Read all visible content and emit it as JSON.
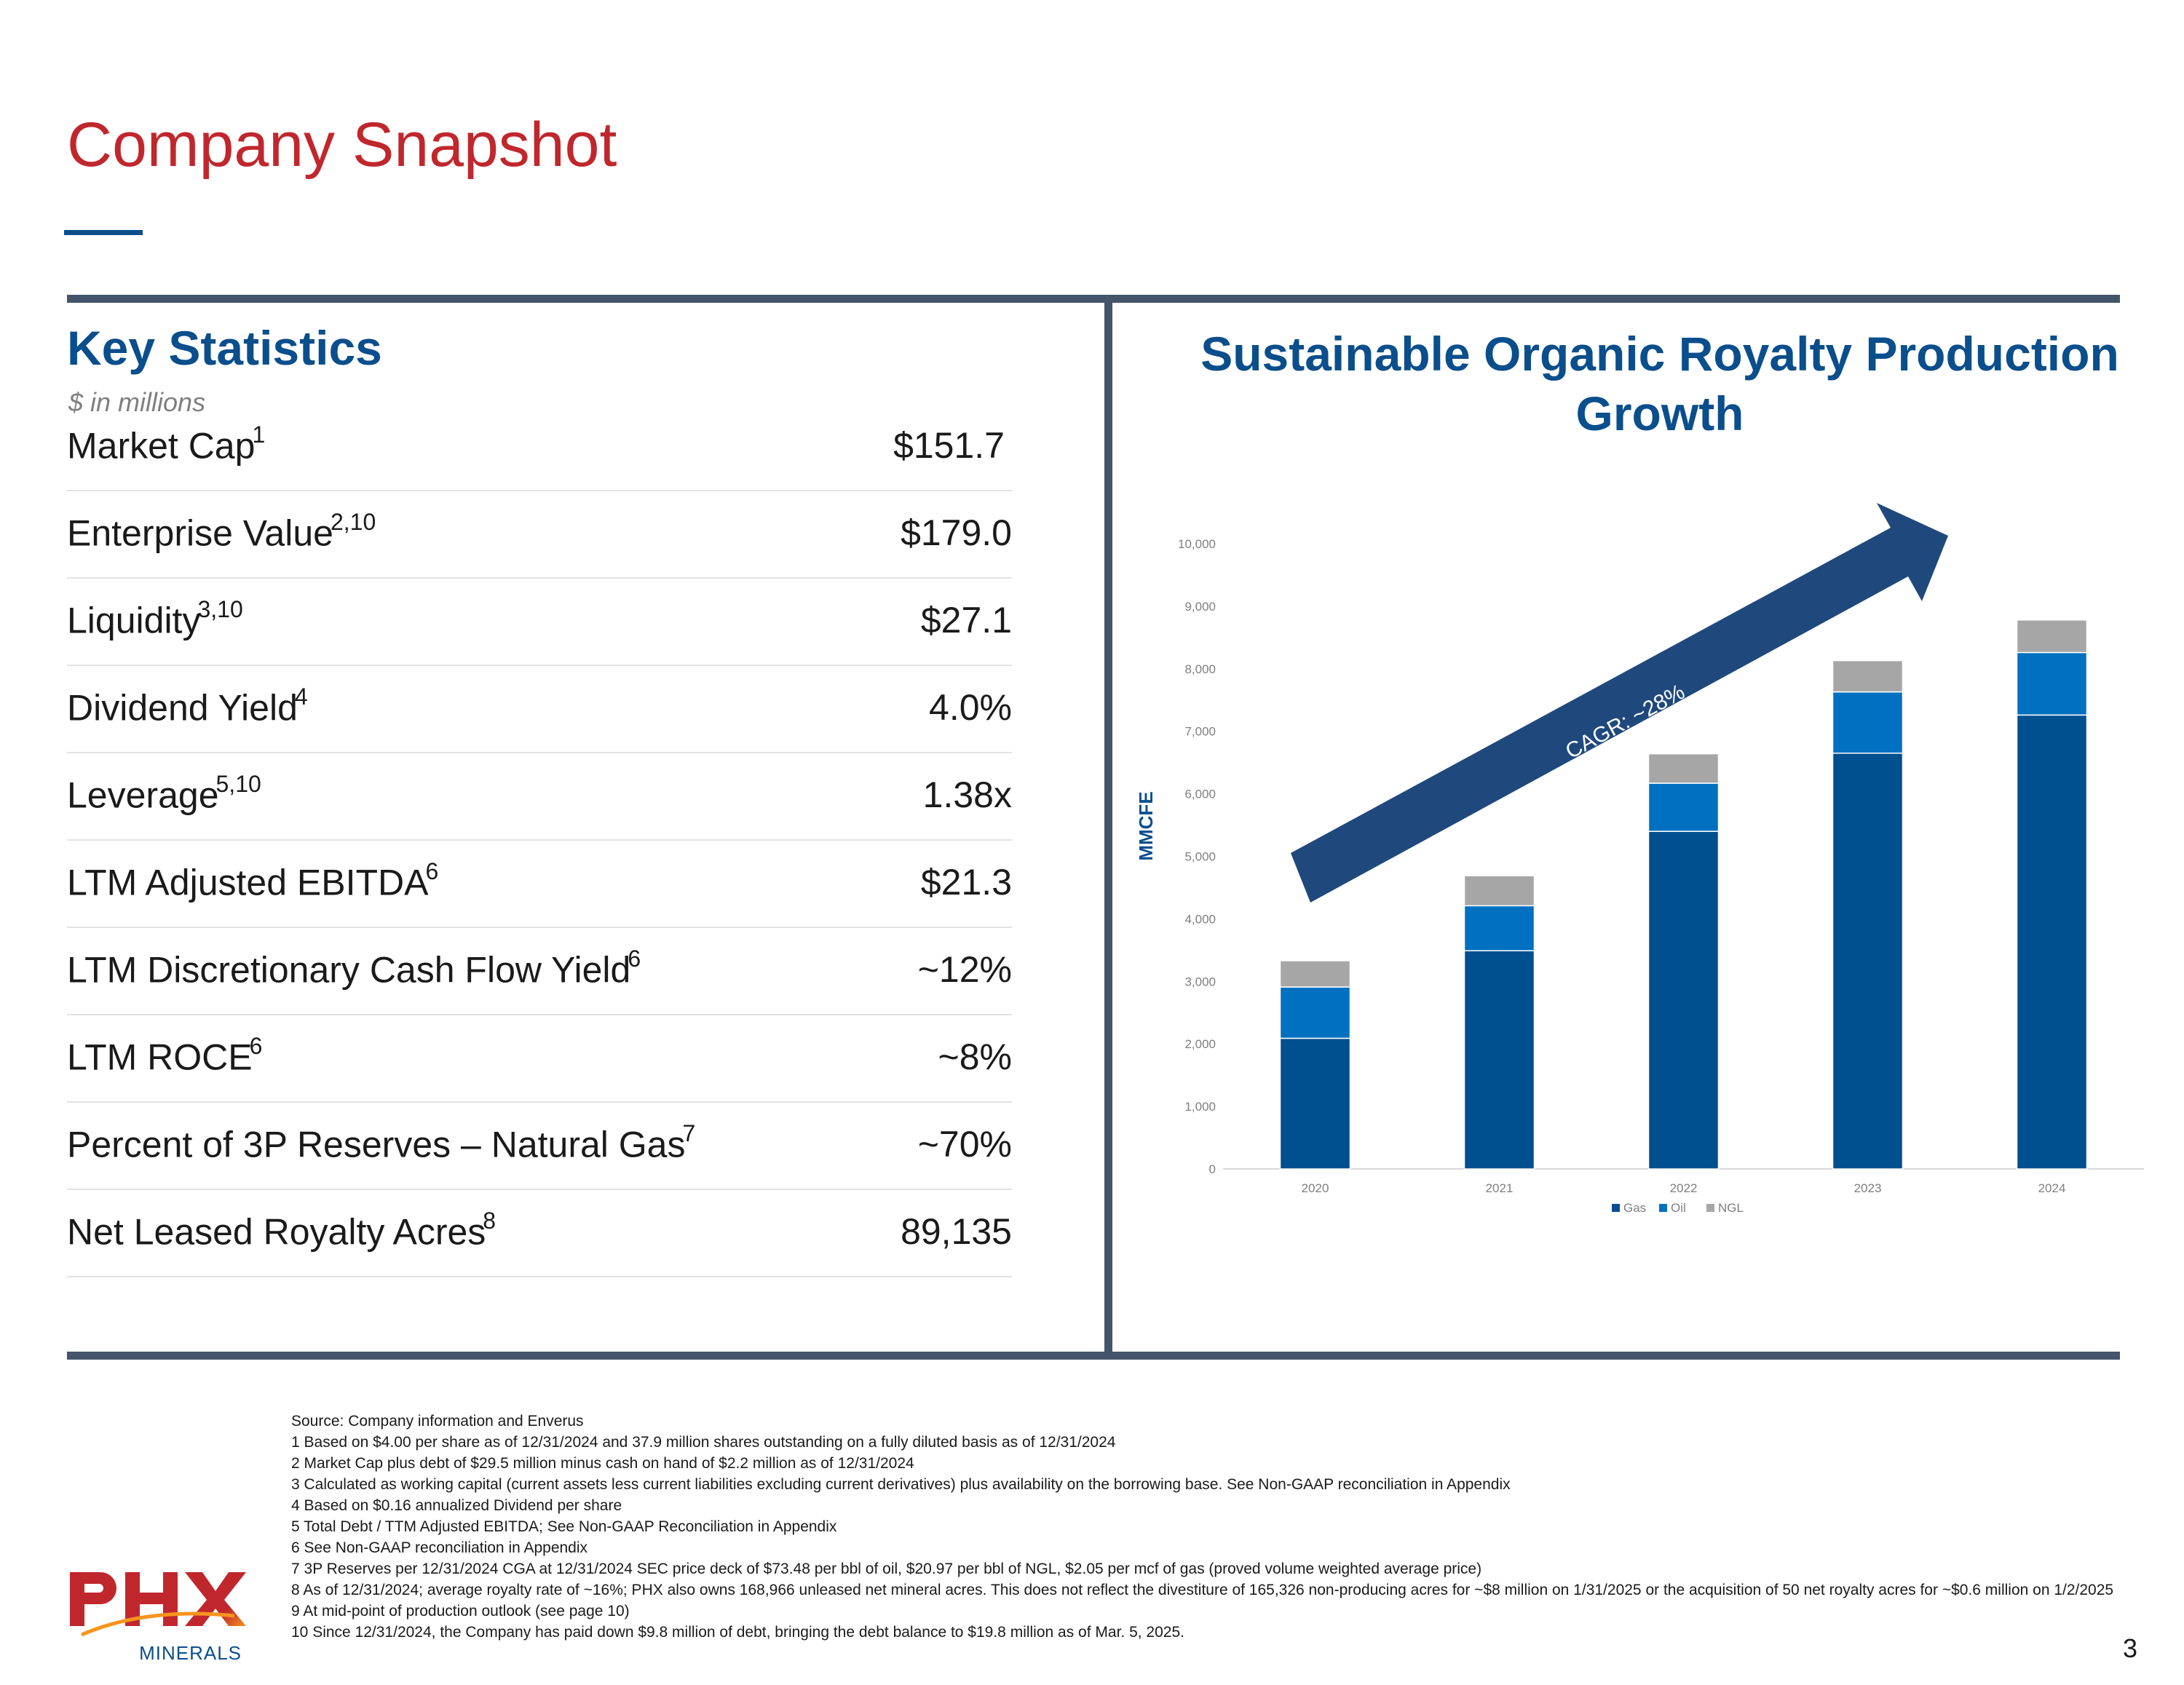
{
  "page": {
    "title": "Company Snapshot",
    "page_number": "3"
  },
  "key_stats": {
    "heading": "Key Statistics",
    "units": "$ in millions",
    "rows": [
      {
        "label": "Market Cap",
        "sup": "1",
        "value": "$151.7"
      },
      {
        "label": "Enterprise Value",
        "sup": "2,10",
        "value": "$179.0"
      },
      {
        "label": "Liquidity",
        "sup": "3,10",
        "value": "$27.1"
      },
      {
        "label": "Dividend Yield",
        "sup": "4",
        "value": "4.0%"
      },
      {
        "label": "Leverage",
        "sup": "5,10",
        "value": "1.38x"
      },
      {
        "label": "LTM Adjusted EBITDA",
        "sup": "6",
        "value": "$21.3"
      },
      {
        "label": "LTM Discretionary Cash Flow Yield",
        "sup": "6",
        "value": "~12%"
      },
      {
        "label": "LTM ROCE",
        "sup": "6",
        "value": "~8%"
      },
      {
        "label": "Percent of 3P Reserves – Natural Gas",
        "sup": "7",
        "value": "~70%"
      },
      {
        "label": "Net Leased Royalty Acres",
        "sup": "8",
        "value": "89,135"
      }
    ]
  },
  "chart_data": {
    "type": "bar",
    "stacked": true,
    "title": "Sustainable Organic Royalty Production Growth",
    "ylabel": "MMCFE",
    "xlabel": "",
    "ylim": [
      0,
      10000
    ],
    "yticks": [
      "0",
      "1,000",
      "2,000",
      "3,000",
      "4,000",
      "5,000",
      "6,000",
      "7,000",
      "8,000",
      "9,000",
      "10,000"
    ],
    "categories": [
      "2020",
      "2021",
      "2022",
      "2023",
      "2024"
    ],
    "series": [
      {
        "name": "Gas",
        "color": "#004F8F",
        "values": [
          2090,
          3490,
          5400,
          6650,
          7260
        ]
      },
      {
        "name": "Oil",
        "color": "#0070C0",
        "values": [
          820,
          720,
          770,
          980,
          1000
        ]
      },
      {
        "name": "NGL",
        "color": "#A6A6A6",
        "values": [
          420,
          480,
          470,
          500,
          520
        ]
      }
    ],
    "annotation": "CAGR: ~28%",
    "legend_position": "bottom"
  },
  "footnotes": [
    "Source: Company information and Enverus",
    "1 Based on $4.00 per share as of 12/31/2024 and 37.9 million shares outstanding on a fully diluted basis  as of 12/31/2024",
    "2 Market Cap plus debt of $29.5 million minus cash on hand of $2.2 million as of 12/31/2024",
    "3 Calculated as working capital (current assets less current liabilities excluding current derivatives) plus availability on the borrowing base.  See Non-GAAP reconciliation in Appendix",
    "4 Based on $0.16 annualized Dividend per share",
    "5 Total Debt / TTM Adjusted EBITDA; See Non-GAAP Reconciliation in Appendix",
    "6 See Non-GAAP reconciliation in Appendix",
    "7 3P Reserves per 12/31/2024 CGA  at 12/31/2024 SEC price deck of $73.48 per bbl of oil, $20.97 per bbl of NGL, $2.05 per mcf of gas (proved volume weighted average price)",
    "8 As of 12/31/2024; average royalty rate of ~16%;  PHX also owns 168,966 unleased net mineral acres. This does not reflect the divestiture of 165,326 non-producing acres for ~$8 million on 1/31/2025 or the acquisition of 50 net royalty acres for ~$0.6 million on 1/2/2025",
    "9 At mid-point of production outlook (see page 10)",
    "10 Since 12/31/2024, the Company has paid down $9.8 million of debt, bringing the debt balance to $19.8 million as of Mar. 5, 2025."
  ],
  "logo": {
    "mark": "PHX",
    "sub": "MINERALS",
    "colors": {
      "primary": "#C0272D",
      "accent": "#F7941D"
    }
  }
}
